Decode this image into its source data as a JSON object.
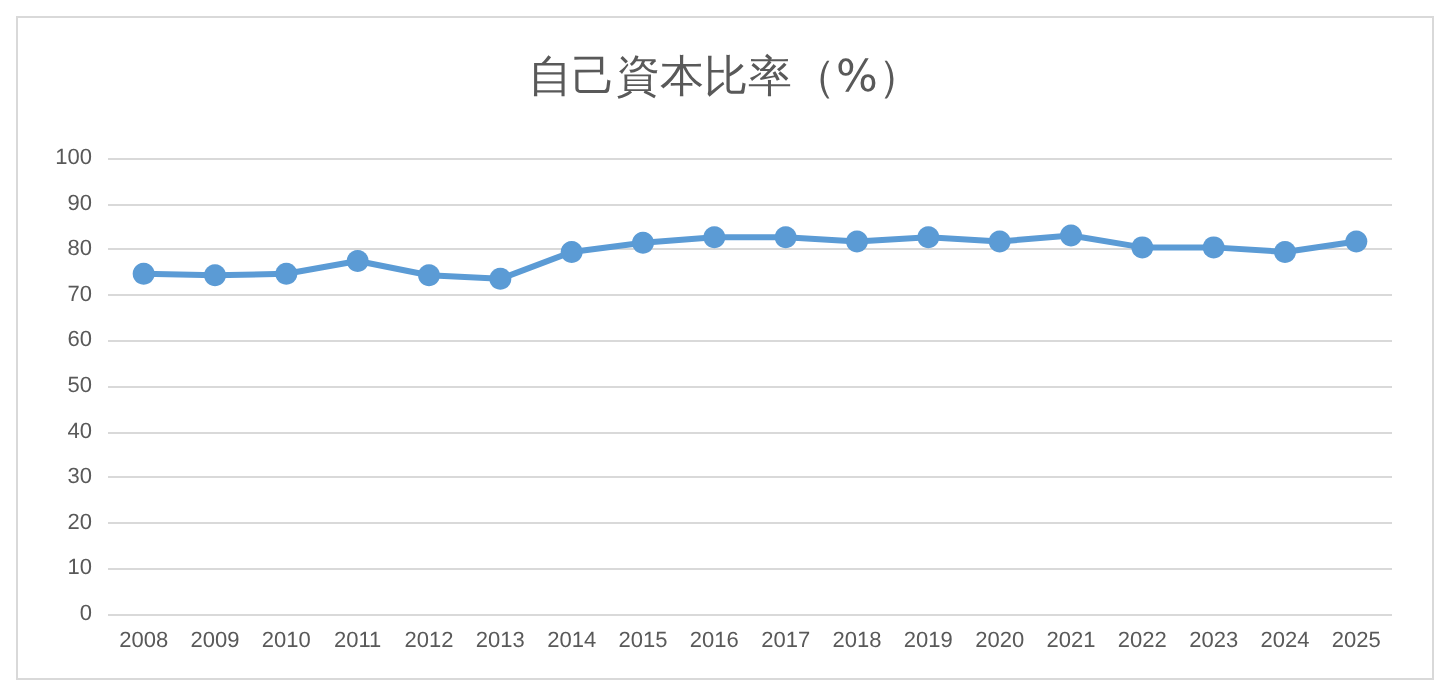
{
  "chart_data": {
    "type": "line",
    "title": "自己資本比率（%）",
    "categories": [
      "2008",
      "2009",
      "2010",
      "2011",
      "2012",
      "2013",
      "2014",
      "2015",
      "2016",
      "2017",
      "2018",
      "2019",
      "2020",
      "2021",
      "2022",
      "2023",
      "2024",
      "2025"
    ],
    "series": [
      {
        "color": "#5b9bd5",
        "values": [
          74.6,
          74.3,
          74.6,
          77.4,
          74.3,
          73.5,
          79.4,
          81.4,
          82.6,
          82.6,
          81.7,
          82.6,
          81.7,
          83.0,
          80.4,
          80.4,
          79.4,
          81.7
        ]
      }
    ],
    "ylim": [
      0,
      100
    ],
    "yticks": [
      0,
      10,
      20,
      30,
      40,
      50,
      60,
      70,
      80,
      90,
      100
    ],
    "grid": "y",
    "marker": "circle",
    "line_style": "solid"
  }
}
